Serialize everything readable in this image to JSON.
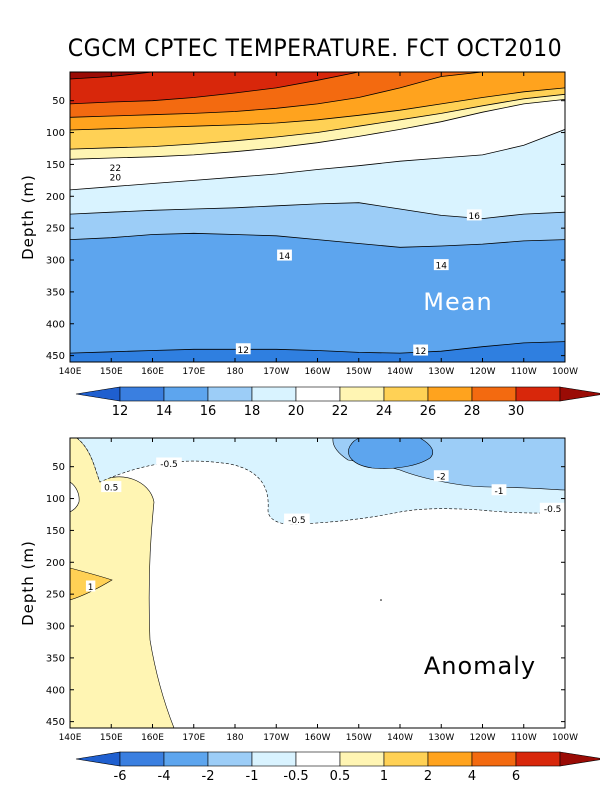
{
  "title": "CGCM CPTEC TEMPERATURE. FCT OCT2010",
  "chart_data": [
    {
      "type": "heatmap",
      "name": "Mean",
      "panel_label": "Mean",
      "xlabel": "",
      "ylabel": "Depth (m)",
      "x_ticks": [
        "140E",
        "150E",
        "160E",
        "170E",
        "180",
        "170W",
        "160W",
        "150W",
        "140W",
        "130W",
        "120W",
        "110W",
        "100W"
      ],
      "y_ticks": [
        50,
        100,
        150,
        200,
        250,
        300,
        350,
        400,
        450
      ],
      "ylim": [
        460,
        5
      ],
      "isotherms": [
        {
          "level": 30,
          "depth": [
            16,
            12,
            5,
            5,
            5,
            5,
            5,
            5,
            5,
            5,
            5,
            5,
            5
          ]
        },
        {
          "level": 28,
          "depth": [
            55,
            52,
            50,
            45,
            38,
            30,
            18,
            5,
            5,
            5,
            5,
            5,
            5
          ]
        },
        {
          "level": 26,
          "depth": [
            76,
            74,
            72,
            70,
            67,
            62,
            55,
            45,
            30,
            12,
            5,
            5,
            5
          ]
        },
        {
          "level": 24,
          "depth": [
            96,
            94,
            92,
            90,
            88,
            85,
            80,
            73,
            65,
            55,
            45,
            36,
            30
          ]
        },
        {
          "level": 22,
          "depth": [
            126,
            124,
            122,
            118,
            113,
            107,
            100,
            90,
            80,
            70,
            58,
            47,
            40
          ]
        },
        {
          "level": 20,
          "depth": [
            142,
            140,
            138,
            135,
            130,
            124,
            116,
            106,
            95,
            83,
            68,
            55,
            48
          ]
        },
        {
          "level": 18,
          "depth": [
            190,
            185,
            180,
            175,
            170,
            165,
            158,
            152,
            145,
            140,
            135,
            120,
            95
          ]
        },
        {
          "level": 16,
          "depth": [
            228,
            225,
            222,
            220,
            218,
            215,
            212,
            210,
            220,
            230,
            235,
            228,
            225
          ]
        },
        {
          "level": 14,
          "depth": [
            268,
            265,
            260,
            258,
            260,
            262,
            268,
            274,
            280,
            278,
            275,
            270,
            268
          ]
        },
        {
          "level": 12,
          "depth": [
            446,
            444,
            442,
            440,
            440,
            440,
            442,
            445,
            446,
            443,
            436,
            430,
            428
          ]
        }
      ],
      "contour_labels": [
        {
          "text": "22",
          "lon": 151,
          "depth": 155
        },
        {
          "text": "20",
          "lon": 151,
          "depth": 170
        },
        {
          "text": "16",
          "lon": 238,
          "depth": 230
        },
        {
          "text": "14",
          "lon": 192,
          "depth": 293
        },
        {
          "text": "14",
          "lon": 230,
          "depth": 308
        },
        {
          "text": "12",
          "lon": 182,
          "depth": 440
        },
        {
          "text": "12",
          "lon": 225,
          "depth": 442
        }
      ],
      "legend": {
        "labels": [
          "12",
          "14",
          "16",
          "18",
          "20",
          "22",
          "24",
          "26",
          "28",
          "30"
        ],
        "colors": [
          "#1f5fcf",
          "#3a7fe0",
          "#5da5ee",
          "#9ccdf7",
          "#d9f3ff",
          "#ffffff",
          "#fff5b3",
          "#ffd155",
          "#ffa31e",
          "#f36a10",
          "#d8270b",
          "#9a0b05"
        ]
      }
    },
    {
      "type": "heatmap",
      "name": "Anomaly",
      "panel_label": "Anomaly",
      "xlabel": "",
      "ylabel": "Depth (m)",
      "x_ticks": [
        "140E",
        "150E",
        "160E",
        "170E",
        "180",
        "170W",
        "160W",
        "150W",
        "140W",
        "130W",
        "120W",
        "110W",
        "100W"
      ],
      "y_ticks": [
        50,
        100,
        150,
        200,
        250,
        300,
        350,
        400,
        450
      ],
      "ylim": [
        460,
        5
      ],
      "contour_labels": [
        {
          "text": "-0.5",
          "lon": 164,
          "depth": 45
        },
        {
          "text": "0.5",
          "lon": 150,
          "depth": 82
        },
        {
          "text": "-0.5",
          "lon": 195,
          "depth": 133
        },
        {
          "text": "-2",
          "lon": 230,
          "depth": 65
        },
        {
          "text": "-1",
          "lon": 244,
          "depth": 87
        },
        {
          "text": "-0.5",
          "lon": 257,
          "depth": 116
        },
        {
          "text": "1",
          "lon": 145,
          "depth": 238
        }
      ],
      "legend": {
        "labels": [
          "-6",
          "-4",
          "-2",
          "-1",
          "-0.5",
          "0.5",
          "1",
          "2",
          "4",
          "6"
        ],
        "colors": [
          "#1f5fcf",
          "#3a7fe0",
          "#5da5ee",
          "#9ccdf7",
          "#d9f3ff",
          "#ffffff",
          "#fff5b3",
          "#ffd155",
          "#ffa31e",
          "#f36a10",
          "#d8270b",
          "#9a0b05"
        ]
      }
    }
  ]
}
